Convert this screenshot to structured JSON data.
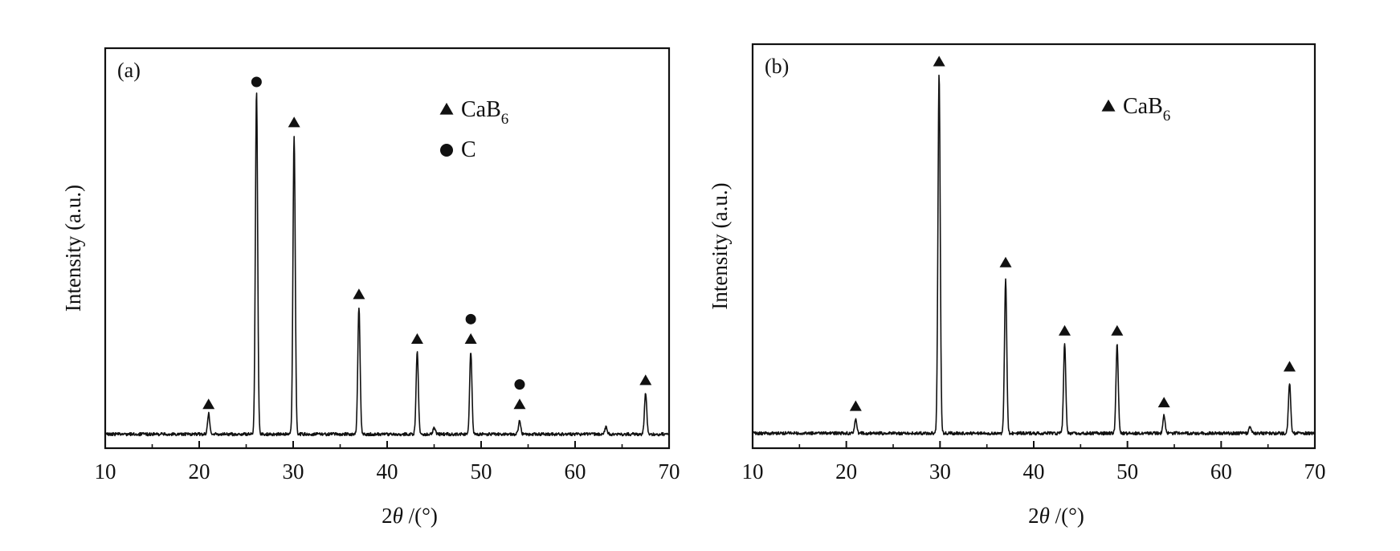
{
  "chart_data": [
    {
      "type": "line",
      "panel_label": "(a)",
      "xlabel_main": "2",
      "xlabel_symbol": "θ",
      "xlabel_rest": " /(°)",
      "ylabel": "Intensity (a.u.)",
      "xlim": [
        10,
        70
      ],
      "ylim": [
        0,
        100
      ],
      "xticks": [
        "10",
        "20",
        "30",
        "40",
        "50",
        "60",
        "70"
      ],
      "legend": [
        {
          "marker": "triangle",
          "text": "CaB",
          "sub": "6"
        },
        {
          "marker": "circle",
          "text": "C",
          "sub": ""
        }
      ],
      "peaks": [
        {
          "x": 21.0,
          "height": 6
        },
        {
          "x": 26.1,
          "height": 100
        },
        {
          "x": 30.1,
          "height": 87
        },
        {
          "x": 37.0,
          "height": 37
        },
        {
          "x": 43.2,
          "height": 24
        },
        {
          "x": 45.0,
          "height": 2
        },
        {
          "x": 48.9,
          "height": 24
        },
        {
          "x": 54.1,
          "height": 4
        },
        {
          "x": 63.3,
          "height": 2
        },
        {
          "x": 67.5,
          "height": 12
        }
      ],
      "markers": [
        {
          "x": 21.0,
          "y": 6,
          "shape": "triangle"
        },
        {
          "x": 26.1,
          "y": 100,
          "shape": "circle"
        },
        {
          "x": 30.1,
          "y": 88,
          "shape": "triangle"
        },
        {
          "x": 37.0,
          "y": 38,
          "shape": "triangle"
        },
        {
          "x": 43.2,
          "y": 25,
          "shape": "triangle"
        },
        {
          "x": 48.9,
          "y": 25,
          "shape": "triangle"
        },
        {
          "x": 48.9,
          "y": 31,
          "shape": "circle"
        },
        {
          "x": 54.1,
          "y": 6,
          "shape": "triangle"
        },
        {
          "x": 54.1,
          "y": 12,
          "shape": "circle"
        },
        {
          "x": 67.5,
          "y": 13,
          "shape": "triangle"
        }
      ]
    },
    {
      "type": "line",
      "panel_label": "(b)",
      "xlabel_main": "2",
      "xlabel_symbol": "θ",
      "xlabel_rest": " /(°)",
      "ylabel": "Intensity (a.u.)",
      "xlim": [
        10,
        70
      ],
      "ylim": [
        0,
        100
      ],
      "xticks": [
        "10",
        "20",
        "30",
        "40",
        "50",
        "60",
        "70"
      ],
      "legend": [
        {
          "marker": "triangle",
          "text": "CaB",
          "sub": "6"
        }
      ],
      "peaks": [
        {
          "x": 21.0,
          "height": 4
        },
        {
          "x": 29.9,
          "height": 100
        },
        {
          "x": 37.0,
          "height": 43
        },
        {
          "x": 43.3,
          "height": 25
        },
        {
          "x": 48.9,
          "height": 25
        },
        {
          "x": 53.9,
          "height": 5
        },
        {
          "x": 63.1,
          "height": 2
        },
        {
          "x": 67.3,
          "height": 14
        }
      ],
      "markers": [
        {
          "x": 21.0,
          "y": 5,
          "shape": "triangle"
        },
        {
          "x": 29.9,
          "y": 101,
          "shape": "triangle"
        },
        {
          "x": 37.0,
          "y": 45,
          "shape": "triangle"
        },
        {
          "x": 43.3,
          "y": 26,
          "shape": "triangle"
        },
        {
          "x": 48.9,
          "y": 26,
          "shape": "triangle"
        },
        {
          "x": 53.9,
          "y": 6,
          "shape": "triangle"
        },
        {
          "x": 67.3,
          "y": 16,
          "shape": "triangle"
        }
      ]
    }
  ]
}
